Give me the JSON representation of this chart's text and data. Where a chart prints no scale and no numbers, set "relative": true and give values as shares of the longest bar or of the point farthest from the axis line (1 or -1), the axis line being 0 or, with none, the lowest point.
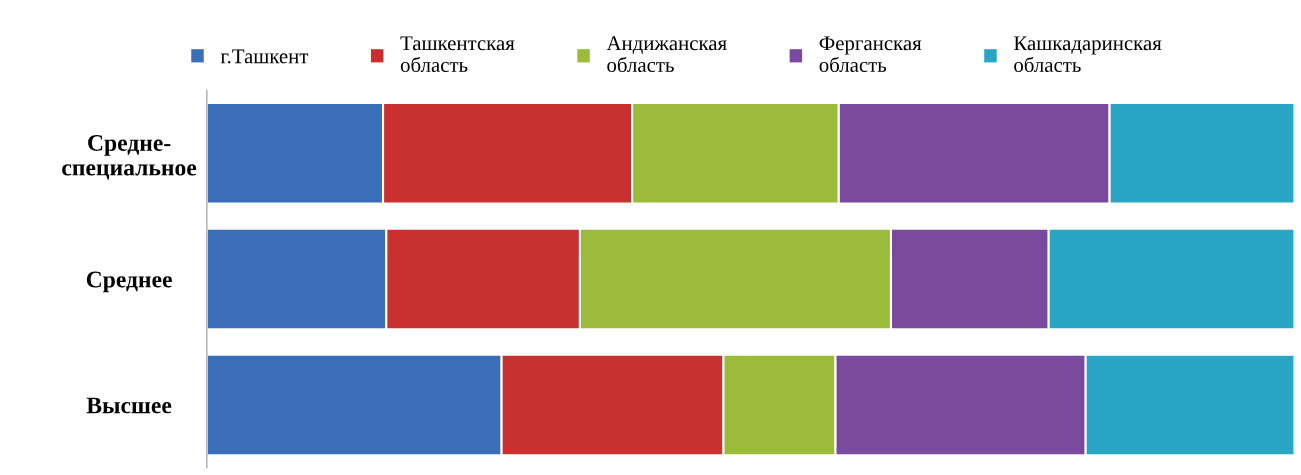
{
  "chart_data": {
    "type": "bar",
    "orientation": "horizontal",
    "stacked": true,
    "relative": true,
    "legend": "top",
    "grid": false,
    "categories": [
      "Средне-\nспециальное",
      "Среднее",
      "Высшее"
    ],
    "series": [
      {
        "name": "г.Ташкент",
        "color": "#3a6fb8",
        "values": [
          0.162,
          0.165,
          0.271
        ]
      },
      {
        "name": "Ташкентская\nобласть",
        "color": "#c8312f",
        "values": [
          0.229,
          0.178,
          0.204
        ]
      },
      {
        "name": "Андижанская\nобласть",
        "color": "#9bbb3b",
        "values": [
          0.19,
          0.286,
          0.103
        ]
      },
      {
        "name": "Ферганская\nобласть",
        "color": "#7a4a9e",
        "values": [
          0.249,
          0.145,
          0.23
        ]
      },
      {
        "name": "Кашкадаринская\nобласть",
        "color": "#2aa5c4",
        "values": [
          0.17,
          0.226,
          0.192
        ]
      }
    ]
  }
}
